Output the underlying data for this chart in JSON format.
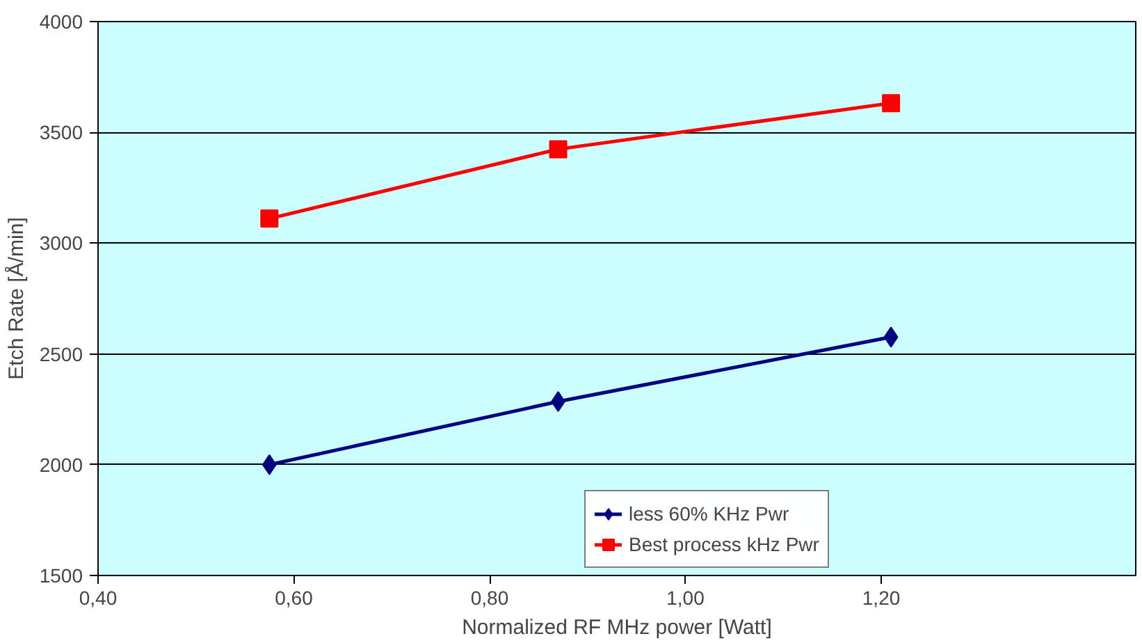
{
  "chart_data": {
    "type": "line",
    "xlabel": "Normalized RF MHz power [Watt]",
    "ylabel": "Etch Rate [Å/min]",
    "x": [
      0.575,
      0.87,
      1.21
    ],
    "series": [
      {
        "name": "less 60% KHz Pwr",
        "color": "#000080",
        "values": [
          2000,
          2285,
          2576
        ],
        "marker": "diamond"
      },
      {
        "name": "Best process kHz Pwr",
        "color": "#ff0000",
        "values": [
          3111,
          3424,
          3632
        ],
        "marker": "square"
      }
    ],
    "xlim": [
      0.4,
      1.46
    ],
    "ylim": [
      1500,
      4000
    ],
    "xticks": [
      {
        "value": 0.4,
        "label": "0,40"
      },
      {
        "value": 0.6,
        "label": "0,60"
      },
      {
        "value": 0.8,
        "label": "0,80"
      },
      {
        "value": 1.0,
        "label": "1,00"
      },
      {
        "value": 1.2,
        "label": "1,20"
      }
    ],
    "yticks": [
      1500,
      2000,
      2500,
      3000,
      3500,
      4000
    ],
    "grid": "y",
    "legend": "bottom right",
    "line_style": "solid"
  }
}
